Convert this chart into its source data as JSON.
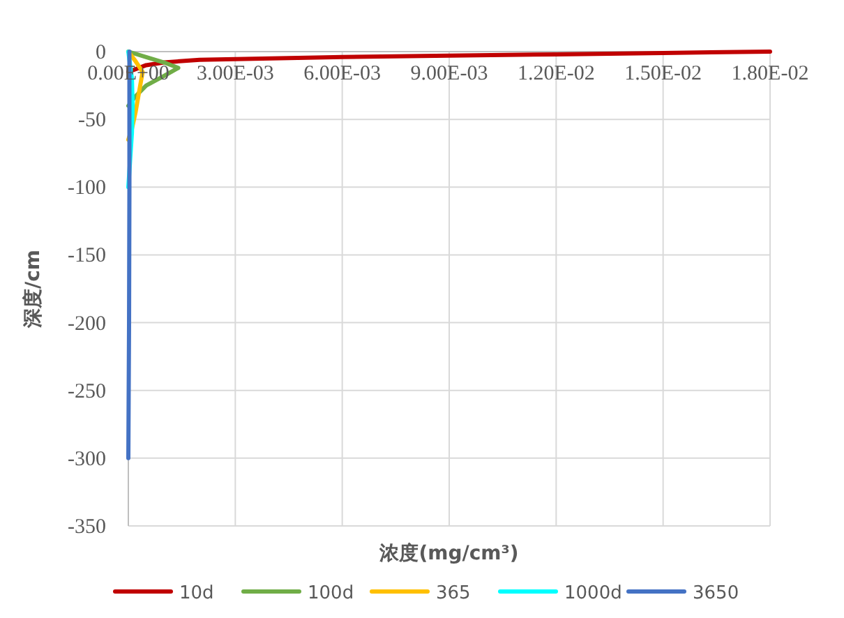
{
  "chart_data": {
    "type": "line",
    "xlabel": "浓度(mg/cm³)",
    "ylabel": "深度/cm",
    "xlim": [
      0,
      0.018
    ],
    "xticks": [
      {
        "value": 0,
        "label": "0.00E+00"
      },
      {
        "value": 0.003,
        "label": "3.00E-03"
      },
      {
        "value": 0.006,
        "label": "6.00E-03"
      },
      {
        "value": 0.009,
        "label": "9.00E-03"
      },
      {
        "value": 0.012,
        "label": "1.20E-02"
      },
      {
        "value": 0.015,
        "label": "1.50E-02"
      },
      {
        "value": 0.018,
        "label": "1.80E-02"
      }
    ],
    "ylim": [
      -350,
      0
    ],
    "yticks": [
      0,
      -50,
      -100,
      -150,
      -200,
      -250,
      -300,
      -350
    ],
    "grid": true,
    "legend": "bottom",
    "marker": "none",
    "line_style": "solid",
    "series": [
      {
        "name": "10d",
        "color": "#c00000",
        "x": [
          0,
          0.0001,
          0.0005,
          0.001,
          0.002,
          0.004,
          0.006,
          0.009,
          0.012,
          0.015,
          0.018
        ],
        "values": [
          -15,
          -14,
          -10,
          -8,
          -6,
          -5,
          -4,
          -3,
          -2,
          -1,
          0
        ]
      },
      {
        "name": "100d",
        "color": "#70ad47",
        "x": [
          0,
          0.0005,
          0.001,
          0.0014,
          0.001,
          0.0005,
          0.0002,
          0
        ],
        "values": [
          0,
          -4,
          -8,
          -12,
          -18,
          -25,
          -33,
          -40
        ]
      },
      {
        "name": "365",
        "color": "#ffc000",
        "x": [
          0,
          0.0002,
          0.0004,
          0.0003,
          0.0002,
          0.0001,
          0
        ],
        "values": [
          0,
          -7,
          -15,
          -30,
          -45,
          -57,
          -65
        ]
      },
      {
        "name": "1000d",
        "color": "#00ffff",
        "x": [
          0,
          0.0001,
          0.00012,
          0.0001,
          5e-05,
          0
        ],
        "values": [
          0,
          -20,
          -40,
          -60,
          -80,
          -100
        ]
      },
      {
        "name": "3650",
        "color": "#4472c4",
        "x": [
          3e-05,
          3e-05,
          2e-05,
          0
        ],
        "values": [
          0,
          -100,
          -200,
          -300
        ]
      }
    ]
  }
}
